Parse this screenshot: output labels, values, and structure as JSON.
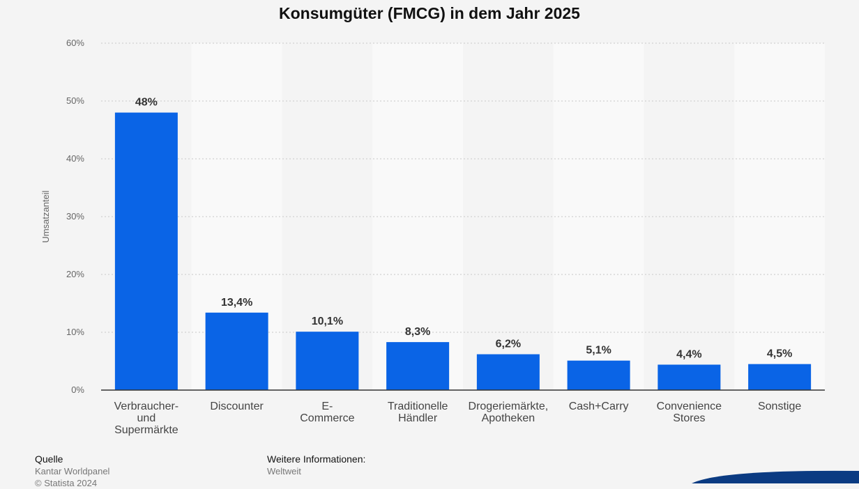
{
  "chart_data": {
    "type": "bar",
    "title": "Konsumgüter (FMCG) in dem Jahr 2025",
    "ylabel": "Umsatzanteil",
    "xlabel": "",
    "ylim": [
      0,
      60
    ],
    "yticks": [
      "0%",
      "10%",
      "20%",
      "30%",
      "40%",
      "50%",
      "60%"
    ],
    "grid": true,
    "categories": [
      [
        "Verbraucher-",
        "und",
        "Supermärkte"
      ],
      [
        "Discounter"
      ],
      [
        "E-",
        "Commerce"
      ],
      [
        "Traditionelle",
        "Händler"
      ],
      [
        "Drogeriemärkte,",
        "Apotheken"
      ],
      [
        "Cash+Carry"
      ],
      [
        "Convenience",
        "Stores"
      ],
      [
        "Sonstige"
      ]
    ],
    "values": [
      48,
      13.4,
      10.1,
      8.3,
      6.2,
      5.1,
      4.4,
      4.5
    ],
    "value_labels": [
      "48%",
      "13,4%",
      "10,1%",
      "8,3%",
      "6,2%",
      "5,1%",
      "4,4%",
      "4,5%"
    ],
    "bar_color": "#0a64e6"
  },
  "footer": {
    "source_heading": "Quelle",
    "source_lines": [
      "Kantar Worldpanel",
      "© Statista 2024"
    ],
    "info_heading": "Weitere Informationen:",
    "info_lines": [
      "Weltweit"
    ]
  },
  "colors": {
    "background": "#f4f4f4",
    "band": "#f9f9f9",
    "accent_swoosh": "#0b3b82"
  }
}
